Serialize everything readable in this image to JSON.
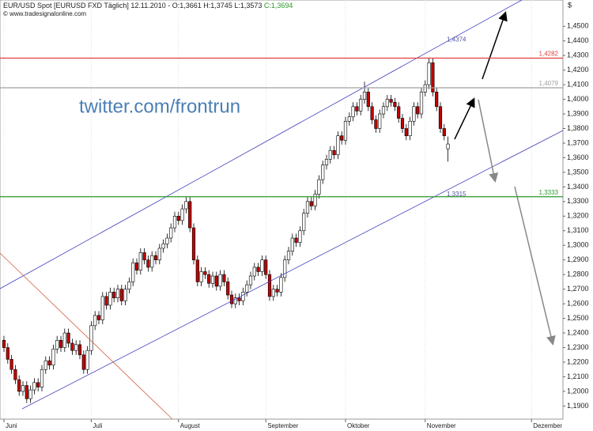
{
  "chart_data": {
    "type": "candlestick",
    "title": "EUR/USD Spot [EURUSD FXD  Täglich] 12.11.2010 -",
    "ohlc_label": "O:1,3661 H:1,3745 L:1,3573",
    "close_label": "C:1,3694",
    "source": "© www.tradesignalonline.com",
    "currency": "$",
    "watermark": "twitter.com/frontrun",
    "categories": [
      "Juni",
      null,
      null,
      null,
      null,
      null,
      null,
      null,
      null,
      null,
      null,
      null,
      null,
      null,
      null,
      null,
      null,
      null,
      null,
      null,
      null,
      null,
      null,
      "Juli",
      null,
      null,
      null,
      null,
      null,
      null,
      null,
      null,
      null,
      null,
      null,
      null,
      null,
      null,
      null,
      null,
      null,
      null,
      null,
      null,
      null,
      null,
      "August",
      null,
      null,
      null,
      null,
      null,
      null,
      null,
      null,
      null,
      null,
      null,
      null,
      null,
      null,
      null,
      null,
      null,
      null,
      null,
      null,
      null,
      null,
      "September",
      null,
      null,
      null,
      null,
      null,
      null,
      null,
      null,
      null,
      null,
      null,
      null,
      null,
      null,
      null,
      null,
      null,
      null,
      null,
      null,
      "Oktober",
      null,
      null,
      null,
      null,
      null,
      null,
      null,
      null,
      null,
      null,
      null,
      null,
      null,
      null,
      null,
      null,
      null,
      null,
      null,
      null,
      "November",
      null,
      null,
      null,
      null,
      null,
      null,
      null,
      null,
      null,
      null,
      null,
      null,
      null,
      null,
      null,
      null,
      null,
      null,
      null,
      null,
      null,
      null,
      null,
      null,
      null,
      null,
      null,
      "Dezember"
    ],
    "open": [
      1.235,
      1.23,
      1.222,
      1.215,
      1.208,
      1.2,
      1.204,
      1.195,
      1.201,
      1.206,
      1.203,
      1.215,
      1.221,
      1.218,
      1.229,
      1.235,
      1.23,
      1.24,
      1.233,
      1.228,
      1.232,
      1.225,
      1.215,
      1.228,
      1.245,
      1.252,
      1.249,
      1.265,
      1.259,
      1.268,
      1.264,
      1.27,
      1.262,
      1.27,
      1.275,
      1.288,
      1.283,
      1.295,
      1.29,
      1.285,
      1.293,
      1.29,
      1.298,
      1.301,
      1.305,
      1.312,
      1.32,
      1.317,
      1.325,
      1.33,
      1.312,
      1.29,
      1.275,
      1.282,
      1.28,
      1.274,
      1.279,
      1.272,
      1.28,
      1.275,
      1.266,
      1.26,
      1.264,
      1.262,
      1.268,
      1.273,
      1.279,
      1.285,
      1.282,
      1.29,
      1.28,
      1.265,
      1.27,
      1.268,
      1.278,
      1.29,
      1.296,
      1.305,
      1.302,
      1.31,
      1.322,
      1.33,
      1.327,
      1.335,
      1.345,
      1.355,
      1.359,
      1.365,
      1.362,
      1.375,
      1.372,
      1.385,
      1.388,
      1.395,
      1.392,
      1.4,
      1.405,
      1.395,
      1.386,
      1.38,
      1.39,
      1.395,
      1.4,
      1.398,
      1.395,
      1.387,
      1.38,
      1.375,
      1.385,
      1.395,
      1.39,
      1.405,
      1.41,
      1.425,
      1.405,
      1.395,
      1.38,
      1.3661,
      null,
      null,
      null,
      null,
      null,
      null,
      null,
      null,
      null,
      null,
      null,
      null,
      null,
      null,
      null,
      null,
      null,
      null,
      null,
      null,
      null,
      null
    ],
    "high": [
      1.238,
      1.233,
      1.225,
      1.218,
      1.211,
      1.207,
      1.207,
      1.204,
      1.209,
      1.209,
      1.218,
      1.224,
      1.224,
      1.232,
      1.238,
      1.238,
      1.243,
      1.243,
      1.236,
      1.235,
      1.235,
      1.228,
      1.231,
      1.248,
      1.255,
      1.255,
      1.268,
      1.268,
      1.271,
      1.271,
      1.273,
      1.273,
      1.273,
      1.278,
      1.291,
      1.291,
      1.298,
      1.298,
      1.293,
      1.296,
      1.296,
      1.301,
      1.304,
      1.308,
      1.315,
      1.323,
      1.323,
      1.328,
      1.333,
      1.333,
      1.315,
      1.293,
      1.285,
      1.285,
      1.283,
      1.282,
      1.282,
      1.283,
      1.283,
      1.278,
      1.269,
      1.267,
      1.267,
      1.271,
      1.276,
      1.282,
      1.288,
      1.288,
      1.293,
      1.293,
      1.283,
      1.273,
      1.273,
      1.281,
      1.293,
      1.299,
      1.308,
      1.308,
      1.313,
      1.325,
      1.333,
      1.333,
      1.338,
      1.348,
      1.358,
      1.362,
      1.368,
      1.368,
      1.378,
      1.378,
      1.388,
      1.391,
      1.398,
      1.398,
      1.403,
      1.412,
      1.408,
      1.398,
      1.389,
      1.393,
      1.398,
      1.403,
      1.403,
      1.401,
      1.398,
      1.39,
      1.383,
      1.388,
      1.398,
      1.398,
      1.408,
      1.413,
      1.4282,
      1.428,
      1.408,
      1.398,
      1.383,
      1.3745,
      null,
      null,
      null,
      null,
      null,
      null,
      null,
      null,
      null,
      null,
      null,
      null,
      null,
      null,
      null,
      null,
      null,
      null,
      null,
      null,
      null,
      null
    ],
    "low": [
      1.227,
      1.219,
      1.212,
      1.205,
      1.197,
      1.197,
      1.192,
      1.192,
      1.198,
      1.2,
      1.2,
      1.212,
      1.215,
      1.215,
      1.226,
      1.227,
      1.227,
      1.23,
      1.225,
      1.225,
      1.222,
      1.212,
      1.212,
      1.225,
      1.242,
      1.246,
      1.246,
      1.256,
      1.256,
      1.261,
      1.261,
      1.259,
      1.259,
      1.267,
      1.272,
      1.28,
      1.28,
      1.287,
      1.282,
      1.282,
      1.287,
      1.287,
      1.295,
      1.298,
      1.302,
      1.309,
      1.314,
      1.314,
      1.322,
      1.309,
      1.287,
      1.272,
      1.272,
      1.277,
      1.271,
      1.271,
      1.269,
      1.269,
      1.272,
      1.263,
      1.257,
      1.257,
      1.259,
      1.259,
      1.265,
      1.27,
      1.276,
      1.279,
      1.279,
      1.277,
      1.262,
      1.262,
      1.265,
      1.265,
      1.275,
      1.287,
      1.293,
      1.299,
      1.299,
      1.307,
      1.319,
      1.324,
      1.324,
      1.332,
      1.342,
      1.352,
      1.356,
      1.359,
      1.359,
      1.369,
      1.369,
      1.382,
      1.385,
      1.389,
      1.389,
      1.397,
      1.392,
      1.383,
      1.377,
      1.377,
      1.387,
      1.392,
      1.395,
      1.392,
      1.384,
      1.377,
      1.372,
      1.372,
      1.382,
      1.387,
      1.387,
      1.402,
      1.407,
      1.402,
      1.392,
      1.377,
      1.372,
      1.3573,
      null,
      null,
      null,
      null,
      null,
      null,
      null,
      null,
      null,
      null,
      null,
      null,
      null,
      null,
      null,
      null,
      null,
      null,
      null,
      null,
      null,
      null
    ],
    "close": [
      1.23,
      1.222,
      1.215,
      1.208,
      1.2,
      1.204,
      1.195,
      1.201,
      1.206,
      1.203,
      1.215,
      1.221,
      1.218,
      1.229,
      1.235,
      1.23,
      1.24,
      1.233,
      1.228,
      1.232,
      1.225,
      1.215,
      1.228,
      1.245,
      1.252,
      1.249,
      1.265,
      1.259,
      1.268,
      1.264,
      1.27,
      1.262,
      1.27,
      1.275,
      1.288,
      1.283,
      1.295,
      1.29,
      1.285,
      1.293,
      1.29,
      1.298,
      1.301,
      1.305,
      1.312,
      1.32,
      1.317,
      1.325,
      1.33,
      1.312,
      1.29,
      1.275,
      1.282,
      1.28,
      1.274,
      1.279,
      1.272,
      1.28,
      1.275,
      1.266,
      1.26,
      1.264,
      1.262,
      1.268,
      1.273,
      1.279,
      1.285,
      1.282,
      1.29,
      1.28,
      1.265,
      1.27,
      1.268,
      1.278,
      1.29,
      1.296,
      1.305,
      1.302,
      1.31,
      1.322,
      1.33,
      1.327,
      1.335,
      1.345,
      1.355,
      1.359,
      1.365,
      1.362,
      1.375,
      1.372,
      1.385,
      1.388,
      1.395,
      1.392,
      1.4,
      1.405,
      1.395,
      1.386,
      1.38,
      1.39,
      1.395,
      1.4,
      1.398,
      1.395,
      1.387,
      1.38,
      1.375,
      1.385,
      1.395,
      1.39,
      1.405,
      1.41,
      1.425,
      1.405,
      1.395,
      1.38,
      1.375,
      1.3694,
      null,
      null,
      null,
      null,
      null,
      null,
      null,
      null,
      null,
      null,
      null,
      null,
      null,
      null,
      null,
      null,
      null,
      null,
      null,
      null,
      null,
      null
    ],
    "up_color": "#ffffff",
    "down_color": "#c00000",
    "ylim": [
      1.181,
      1.468
    ],
    "yticks": [
      {
        "value": 1.19,
        "label": "1,1900"
      },
      {
        "value": 1.2,
        "label": "1,2000"
      },
      {
        "value": 1.21,
        "label": "1,2100"
      },
      {
        "value": 1.22,
        "label": "1,2200"
      },
      {
        "value": 1.23,
        "label": "1,2300"
      },
      {
        "value": 1.24,
        "label": "1,2400"
      },
      {
        "value": 1.25,
        "label": "1,2500"
      },
      {
        "value": 1.26,
        "label": "1,2600"
      },
      {
        "value": 1.27,
        "label": "1,2700"
      },
      {
        "value": 1.28,
        "label": "1,2800"
      },
      {
        "value": 1.29,
        "label": "1,2900"
      },
      {
        "value": 1.3,
        "label": "1,3000"
      },
      {
        "value": 1.31,
        "label": "1,3100"
      },
      {
        "value": 1.32,
        "label": "1,3200"
      },
      {
        "value": 1.33,
        "label": "1,3300"
      },
      {
        "value": 1.34,
        "label": "1,3400"
      },
      {
        "value": 1.35,
        "label": "1,3500"
      },
      {
        "value": 1.36,
        "label": "1,3600"
      },
      {
        "value": 1.37,
        "label": "1,3700"
      },
      {
        "value": 1.38,
        "label": "1,3800"
      },
      {
        "value": 1.39,
        "label": "1,3900"
      },
      {
        "value": 1.4,
        "label": "1,4000"
      },
      {
        "value": 1.41,
        "label": "1,4100"
      },
      {
        "value": 1.42,
        "label": "1,4200"
      },
      {
        "value": 1.43,
        "label": "1,4300"
      },
      {
        "value": 1.44,
        "label": "1,4400"
      },
      {
        "value": 1.45,
        "label": "1,4500"
      }
    ],
    "hlines": [
      {
        "value": 1.4282,
        "label": "1,4282",
        "color": "#e04040"
      },
      {
        "value": 1.4079,
        "label": "1,4079",
        "color": "#a0a0a0"
      },
      {
        "value": 1.3333,
        "label": "1,3333",
        "color": "#2a9a2a"
      }
    ],
    "channel_labels": [
      {
        "value": 1.4374,
        "label": "1,4374"
      },
      {
        "value": 1.3315,
        "label": "1,3315"
      }
    ]
  }
}
